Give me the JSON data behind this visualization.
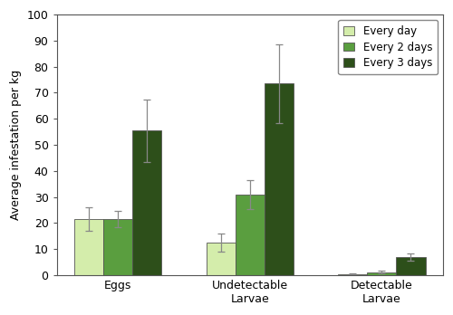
{
  "categories": [
    "Eggs",
    "Undetectable\nLarvae",
    "Detectable\nLarvae"
  ],
  "series": {
    "Every day": [
      21.5,
      12.5,
      0.5
    ],
    "Every 2 days": [
      21.5,
      31.0,
      1.2
    ],
    "Every 3 days": [
      55.5,
      73.5,
      7.0
    ]
  },
  "errors": {
    "Every day": [
      4.5,
      3.5,
      0.3
    ],
    "Every 2 days": [
      3.0,
      5.5,
      0.5
    ],
    "Every 3 days": [
      12.0,
      15.0,
      1.5
    ]
  },
  "colors": {
    "Every day": "#d4edab",
    "Every 2 days": "#5a9e3f",
    "Every 3 days": "#2d4f1a"
  },
  "ylabel": "Average infestation per kg",
  "ylim": [
    0,
    100
  ],
  "yticks": [
    0,
    10,
    20,
    30,
    40,
    50,
    60,
    70,
    80,
    90,
    100
  ],
  "bar_width": 0.22,
  "legend_order": [
    "Every day",
    "Every 2 days",
    "Every 3 days"
  ],
  "edge_color": "#555555",
  "error_color": "#888888",
  "figsize": [
    5.0,
    3.48
  ],
  "dpi": 100
}
